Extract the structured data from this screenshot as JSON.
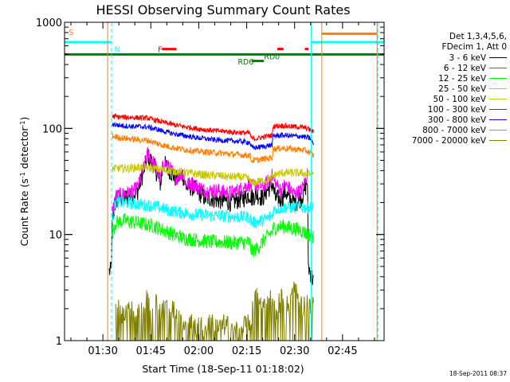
{
  "chart_data": {
    "type": "line",
    "title": "HESSI Observing Summary Count Rates",
    "xlabel": "Start Time (18-Sep-11 01:18:02)",
    "ylabel_parts": [
      "Count Rate (s",
      "-1",
      " detector",
      "-1",
      ")"
    ],
    "y_scale": "log",
    "ylim": [
      1,
      1000
    ],
    "xlim_minutes": [
      78,
      178
    ],
    "x_ticks": [
      {
        "minute": 90,
        "label": "01:30"
      },
      {
        "minute": 105,
        "label": "01:45"
      },
      {
        "minute": 120,
        "label": "02:00"
      },
      {
        "minute": 135,
        "label": "02:15"
      },
      {
        "minute": 150,
        "label": "02:30"
      },
      {
        "minute": 165,
        "label": "02:45"
      }
    ],
    "y_ticks": [
      {
        "value": 1,
        "label": "1"
      },
      {
        "value": 10,
        "label": "10"
      },
      {
        "value": 100,
        "label": "100"
      },
      {
        "value": 1000,
        "label": "1000"
      }
    ],
    "legend_header": [
      "Det 1,3,4,5,6,",
      "FDecim 1, Att 0"
    ],
    "series": [
      {
        "name": "3 - 6 keV",
        "color": "#000000",
        "points": [
          [
            92,
            4.5
          ],
          [
            92.6,
            4.5
          ],
          [
            92.9,
            12
          ],
          [
            94,
            21
          ],
          [
            96,
            22
          ],
          [
            99,
            23
          ],
          [
            101,
            26
          ],
          [
            103,
            42
          ],
          [
            104,
            55
          ],
          [
            106,
            45
          ],
          [
            107,
            37
          ],
          [
            108,
            30
          ],
          [
            109,
            47
          ],
          [
            111,
            40
          ],
          [
            113,
            33
          ],
          [
            115,
            37
          ],
          [
            116,
            28
          ],
          [
            118,
            28
          ],
          [
            120,
            25
          ],
          [
            122,
            22
          ],
          [
            124,
            22
          ],
          [
            126,
            21
          ],
          [
            128,
            21
          ],
          [
            130,
            20
          ],
          [
            132,
            21
          ],
          [
            134,
            22
          ],
          [
            136,
            24
          ],
          [
            136.5,
            22
          ],
          [
            138,
            24
          ],
          [
            140,
            22
          ],
          [
            141,
            25
          ],
          [
            143,
            30
          ],
          [
            144,
            22
          ],
          [
            146,
            21
          ],
          [
            147,
            26
          ],
          [
            148,
            22
          ],
          [
            150,
            20
          ],
          [
            151,
            21
          ],
          [
            152,
            22
          ],
          [
            153,
            25
          ],
          [
            154,
            33
          ],
          [
            154.3,
            5
          ],
          [
            156,
            3.5
          ]
        ]
      },
      {
        "name": "6 - 12 keV",
        "color": "#ff00ff",
        "points": [
          [
            92.9,
            16
          ],
          [
            94,
            23
          ],
          [
            96,
            24
          ],
          [
            99,
            25
          ],
          [
            101,
            28
          ],
          [
            103,
            45
          ],
          [
            104,
            58
          ],
          [
            106,
            47
          ],
          [
            107,
            40
          ],
          [
            108,
            33
          ],
          [
            109,
            48
          ],
          [
            111,
            42
          ],
          [
            113,
            34
          ],
          [
            115,
            38
          ],
          [
            116,
            30
          ],
          [
            118,
            30
          ],
          [
            120,
            28
          ],
          [
            122,
            26
          ],
          [
            124,
            26
          ],
          [
            126,
            26
          ],
          [
            128,
            25
          ],
          [
            130,
            25
          ],
          [
            132,
            26
          ],
          [
            134,
            28
          ],
          [
            136,
            30
          ],
          [
            136.5,
            28
          ],
          [
            138,
            30
          ],
          [
            140,
            28
          ],
          [
            141,
            30
          ],
          [
            143,
            36
          ],
          [
            144,
            30
          ],
          [
            146,
            26
          ],
          [
            147,
            30
          ],
          [
            148,
            28
          ],
          [
            150,
            24
          ],
          [
            151,
            25
          ],
          [
            152,
            26
          ],
          [
            153,
            30
          ],
          [
            154,
            38
          ]
        ]
      },
      {
        "name": "12 - 25 keV",
        "color": "#00ff00",
        "points": [
          [
            92.9,
            10
          ],
          [
            94,
            13
          ],
          [
            97,
            13.5
          ],
          [
            100,
            13
          ],
          [
            103,
            12.5
          ],
          [
            106,
            12
          ],
          [
            109,
            11
          ],
          [
            112,
            10
          ],
          [
            115,
            9.3
          ],
          [
            118,
            9
          ],
          [
            121,
            8.7
          ],
          [
            124,
            8.5
          ],
          [
            127,
            8.5
          ],
          [
            130,
            8.4
          ],
          [
            133,
            8.4
          ],
          [
            136,
            8.4
          ],
          [
            136.5,
            7
          ],
          [
            138,
            7.3
          ],
          [
            140,
            8.5
          ],
          [
            142,
            10
          ],
          [
            143,
            10.5
          ],
          [
            143.3,
            11.5
          ],
          [
            146,
            12
          ],
          [
            149,
            11.5
          ],
          [
            152,
            11
          ],
          [
            154,
            10
          ],
          [
            155,
            10
          ],
          [
            156,
            9.5
          ]
        ]
      },
      {
        "name": "25 - 50 keV",
        "color": "#00ffff",
        "points": [
          [
            92.9,
            14
          ],
          [
            94,
            20
          ],
          [
            97,
            20
          ],
          [
            100,
            19.5
          ],
          [
            103,
            19
          ],
          [
            106,
            18.5
          ],
          [
            109,
            17.5
          ],
          [
            112,
            16.5
          ],
          [
            115,
            16
          ],
          [
            118,
            15.5
          ],
          [
            121,
            15.3
          ],
          [
            124,
            15
          ],
          [
            127,
            15
          ],
          [
            130,
            14.8
          ],
          [
            133,
            14.7
          ],
          [
            136,
            14.5
          ],
          [
            136.5,
            13
          ],
          [
            138,
            13
          ],
          [
            141,
            14
          ],
          [
            143,
            15
          ],
          [
            143.3,
            17
          ],
          [
            146,
            18
          ],
          [
            149,
            18
          ],
          [
            152,
            18
          ],
          [
            154,
            18
          ],
          [
            156,
            18
          ]
        ]
      },
      {
        "name": "50 - 100 keV",
        "color": "#c8c800",
        "points": [
          [
            92.9,
            42
          ],
          [
            95,
            42
          ],
          [
            98,
            42
          ],
          [
            101,
            43
          ],
          [
            103,
            43
          ],
          [
            105,
            42
          ],
          [
            108,
            41
          ],
          [
            111,
            40
          ],
          [
            114,
            39
          ],
          [
            117,
            38
          ],
          [
            120,
            37
          ],
          [
            123,
            36
          ],
          [
            126,
            36
          ],
          [
            129,
            35
          ],
          [
            132,
            35
          ],
          [
            135,
            34
          ],
          [
            136,
            33
          ],
          [
            136.5,
            30
          ],
          [
            138,
            31
          ],
          [
            140,
            32
          ],
          [
            142,
            33
          ],
          [
            143,
            34
          ],
          [
            143.3,
            36
          ],
          [
            146,
            38
          ],
          [
            149,
            38
          ],
          [
            152,
            38
          ],
          [
            154,
            37
          ],
          [
            155,
            37
          ],
          [
            156,
            38
          ]
        ]
      },
      {
        "name": "100 - 300 keV",
        "color": "#ff0000",
        "points": [
          [
            92.9,
            130
          ],
          [
            95,
            128
          ],
          [
            98,
            127
          ],
          [
            101,
            126
          ],
          [
            104,
            125
          ],
          [
            107,
            118
          ],
          [
            110,
            112
          ],
          [
            113,
            107
          ],
          [
            116,
            103
          ],
          [
            119,
            100
          ],
          [
            122,
            97
          ],
          [
            125,
            95
          ],
          [
            128,
            94
          ],
          [
            131,
            92
          ],
          [
            134,
            91
          ],
          [
            136,
            90
          ],
          [
            136.5,
            80
          ],
          [
            138,
            80
          ],
          [
            141,
            84
          ],
          [
            143,
            86
          ],
          [
            143.3,
            105
          ],
          [
            146,
            106
          ],
          [
            149,
            104
          ],
          [
            152,
            103
          ],
          [
            154,
            100
          ],
          [
            155,
            96
          ],
          [
            156,
            92
          ]
        ]
      },
      {
        "name": "300 - 800 keV",
        "color": "#0000ff",
        "points": [
          [
            92.9,
            110
          ],
          [
            95,
            107
          ],
          [
            98,
            105
          ],
          [
            101,
            104
          ],
          [
            104,
            103
          ],
          [
            107,
            98
          ],
          [
            110,
            92
          ],
          [
            113,
            88
          ],
          [
            116,
            85
          ],
          [
            119,
            82
          ],
          [
            122,
            80
          ],
          [
            125,
            78
          ],
          [
            128,
            77
          ],
          [
            131,
            76
          ],
          [
            134,
            75
          ],
          [
            136,
            74
          ],
          [
            136.5,
            66
          ],
          [
            138,
            66
          ],
          [
            141,
            68
          ],
          [
            143,
            70
          ],
          [
            143.3,
            85
          ],
          [
            146,
            86
          ],
          [
            149,
            85
          ],
          [
            152,
            84
          ],
          [
            154,
            82
          ],
          [
            155,
            80
          ],
          [
            156,
            70
          ]
        ]
      },
      {
        "name": "800 - 7000 keV",
        "color": "#ff8000",
        "points": [
          [
            92.9,
            85
          ],
          [
            95,
            82
          ],
          [
            98,
            80
          ],
          [
            101,
            78
          ],
          [
            104,
            77
          ],
          [
            107,
            72
          ],
          [
            110,
            68
          ],
          [
            113,
            65
          ],
          [
            116,
            63
          ],
          [
            119,
            61
          ],
          [
            122,
            60
          ],
          [
            125,
            59
          ],
          [
            128,
            58
          ],
          [
            131,
            57
          ],
          [
            134,
            56
          ],
          [
            136,
            56
          ],
          [
            136.5,
            50
          ],
          [
            138,
            50
          ],
          [
            141,
            52
          ],
          [
            143,
            53
          ],
          [
            143.3,
            64
          ],
          [
            146,
            65
          ],
          [
            149,
            64
          ],
          [
            152,
            63
          ],
          [
            154,
            61
          ],
          [
            155,
            59
          ],
          [
            156,
            55
          ]
        ]
      },
      {
        "name": "7000 - 20000 keV",
        "color": "#808000",
        "points": [
          [
            94,
            2
          ],
          [
            96,
            1.8
          ],
          [
            98,
            2
          ],
          [
            100,
            1.7
          ],
          [
            102,
            1.9
          ],
          [
            103,
            2
          ],
          [
            104,
            2.5
          ],
          [
            105,
            1.6
          ],
          [
            106,
            2.7
          ],
          [
            107,
            2
          ],
          [
            108,
            1.8
          ],
          [
            109,
            2
          ],
          [
            110,
            2
          ],
          [
            112,
            2
          ],
          [
            115,
            1.5
          ],
          [
            118,
            1.4
          ],
          [
            121,
            1.3
          ],
          [
            124,
            1.5
          ],
          [
            127,
            1.4
          ],
          [
            130,
            1.3
          ],
          [
            133,
            1.2
          ],
          [
            136,
            1.5
          ],
          [
            138,
            2.5
          ],
          [
            140,
            2
          ],
          [
            142,
            3
          ],
          [
            144,
            1.8
          ],
          [
            146,
            2.5
          ],
          [
            148,
            2
          ],
          [
            150,
            3
          ],
          [
            152,
            2
          ],
          [
            154,
            2.2
          ],
          [
            156,
            2
          ]
        ]
      }
    ],
    "flags": [
      {
        "label": "S",
        "color": "#ff8000",
        "label_minute": 79.3,
        "label_value": 810
      },
      {
        "label": "N",
        "color": "#00ffff",
        "label_minute": 93.6,
        "label_value": 560
      },
      {
        "label": "F",
        "color": "#ff0000",
        "label_minute": 107.2,
        "label_value": 560
      },
      {
        "label": "RD6",
        "color": "#008000",
        "label_minute": 132.2,
        "label_value": 430
      },
      {
        "label": "RD0",
        "color": "#008000",
        "label_minute": 140.4,
        "label_value": 480
      }
    ]
  }
}
